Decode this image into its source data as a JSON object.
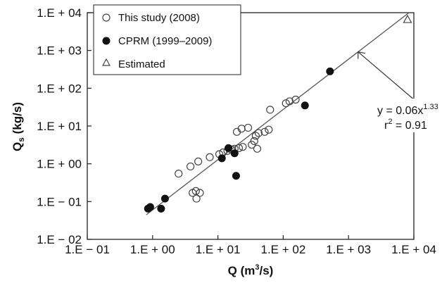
{
  "chart_data": {
    "type": "scatter",
    "x_scale": "log",
    "y_scale": "log",
    "xlim": [
      0.1,
      10000
    ],
    "ylim": [
      0.01,
      10000
    ],
    "xlabel": "Q (m",
    "xlabel_sup": "3",
    "xlabel_end": "/s)",
    "ylabel": "Q",
    "ylabel_sub": "s",
    "ylabel_end": " (kg/s)",
    "x_ticks": [
      0.1,
      1,
      10,
      100,
      1000,
      10000
    ],
    "x_tick_labels": [
      "1.E − 01",
      "1.E + 00",
      "1.E + 01",
      "1.E + 02",
      "1.E + 03",
      "1.E + 04"
    ],
    "y_ticks": [
      0.01,
      0.1,
      1,
      10,
      100,
      1000,
      10000
    ],
    "y_tick_labels": [
      "1.E − 02",
      "1.E − 01",
      "1.E + 00",
      "1.E + 01",
      "1.E + 02",
      "1.E + 03",
      "1.E + 04"
    ],
    "grid": false,
    "legend_placement": "top-left",
    "series": [
      {
        "name": "This study (2008)",
        "marker": "open-circle",
        "x": [
          2.5,
          3.8,
          5.0,
          4.1,
          4.6,
          4.7,
          5.3,
          7.5,
          10.5,
          12.0,
          14.0,
          16.0,
          18.0,
          19.5,
          21.0,
          23.0,
          24.0,
          29.0,
          33.0,
          36.0,
          38.0,
          40.0,
          42.0,
          52.0,
          60.0,
          63.0,
          110.0,
          125.0,
          155.0
        ],
        "y": [
          0.55,
          0.85,
          1.15,
          0.17,
          0.19,
          0.12,
          0.17,
          1.5,
          1.8,
          2.0,
          2.2,
          2.4,
          2.5,
          7.0,
          2.6,
          8.5,
          2.8,
          9.0,
          3.2,
          4.0,
          5.5,
          2.5,
          6.5,
          7.0,
          8.0,
          27.0,
          40.0,
          45.0,
          50.0
        ]
      },
      {
        "name": "CPRM (1999–2009)",
        "marker": "filled-circle",
        "x": [
          0.85,
          0.92,
          1.35,
          1.55,
          11.5,
          14.5,
          18.0,
          19.0,
          215.0,
          520.0
        ],
        "y": [
          0.065,
          0.072,
          0.065,
          0.12,
          1.4,
          2.6,
          1.9,
          0.48,
          35.0,
          280.0
        ]
      },
      {
        "name": "Estimated",
        "marker": "open-triangle",
        "x": [
          8000
        ],
        "y": [
          6500
        ]
      }
    ],
    "fit_line": {
      "coefficient": 0.06,
      "exponent": 1.33,
      "x_range": [
        0.8,
        8500
      ]
    },
    "annotation": {
      "eq_prefix": "y = 0.06x",
      "eq_exponent": "1.33",
      "r2_prefix": "r",
      "r2_sup": "2",
      "r2_suffix": " = 0.91",
      "arrow_target_x": 1400
    }
  }
}
